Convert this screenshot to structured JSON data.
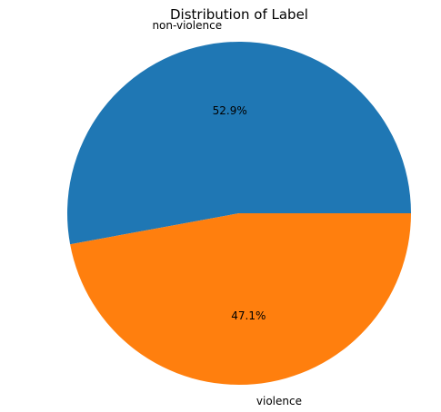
{
  "chart_data": {
    "type": "pie",
    "title": "Distribution of Label",
    "labels": [
      "non-violence",
      "violence"
    ],
    "values": [
      52.9,
      47.1
    ],
    "percent_labels": [
      "52.9%",
      "47.1%"
    ],
    "colors": [
      "#1f77b4",
      "#ff7f0e"
    ],
    "start_angle_deg": 0,
    "direction": "counterclockwise"
  }
}
